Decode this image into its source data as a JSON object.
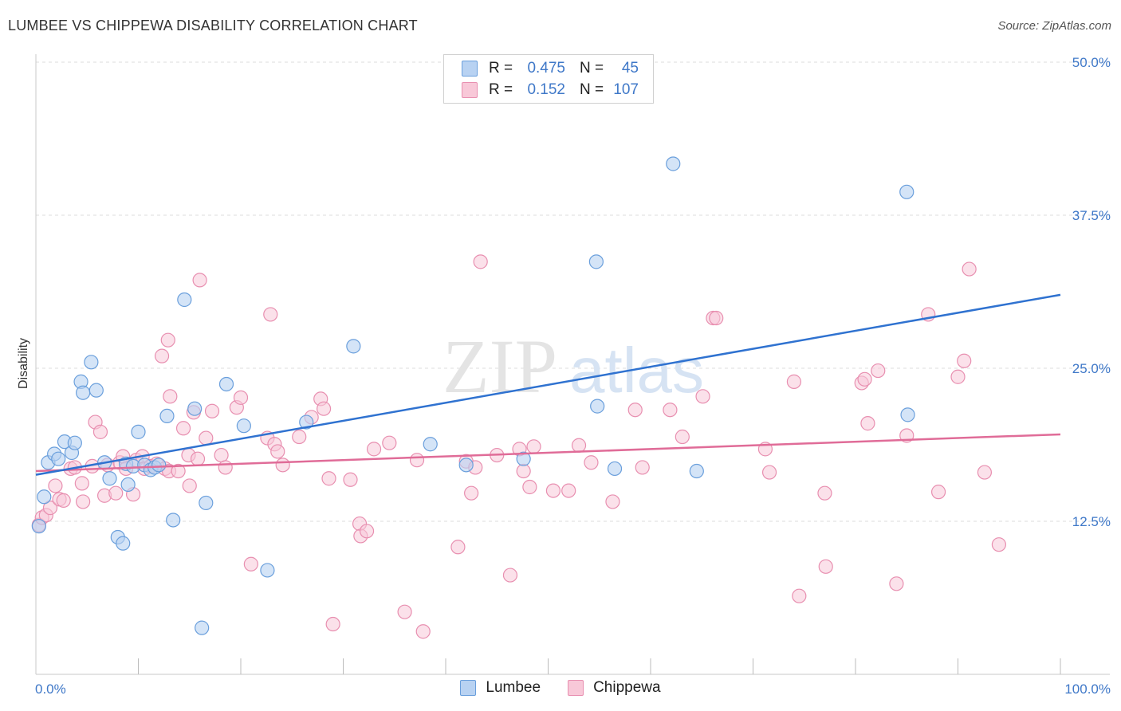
{
  "title": "LUMBEE VS CHIPPEWA DISABILITY CORRELATION CHART",
  "source": "Source: ZipAtlas.com",
  "watermark": {
    "zip": "ZIP",
    "atlas": "atlas"
  },
  "legend_top": {
    "rows": [
      {
        "r_label": "R =",
        "r_value": "0.475",
        "n_label": "N =",
        "n_value": "45"
      },
      {
        "r_label": "R =",
        "r_value": "0.152",
        "n_label": "N =",
        "n_value": "107"
      }
    ]
  },
  "legend_bottom": {
    "items": [
      "Lumbee",
      "Chippewa"
    ]
  },
  "colors": {
    "lumbee_fill": "#b8d2f2",
    "lumbee_stroke": "#6a9fdc",
    "lumbee_line": "#2f72d0",
    "chippewa_fill": "#f8c8d8",
    "chippewa_stroke": "#e88fb0",
    "chippewa_line": "#e06c98",
    "tick_text": "#3f78c8",
    "grid": "#dddddd"
  },
  "chart_data": {
    "type": "scatter",
    "title": "LUMBEE VS CHIPPEWA DISABILITY CORRELATION CHART",
    "xlabel": "",
    "ylabel": "Disability",
    "xlim": [
      0,
      100
    ],
    "ylim": [
      0,
      50
    ],
    "x_tick_labels": [
      "0.0%",
      "100.0%"
    ],
    "y_ticks": [
      12.5,
      25.0,
      37.5,
      50.0
    ],
    "y_tick_labels": [
      "12.5%",
      "25.0%",
      "37.5%",
      "50.0%"
    ],
    "grid": "horizontal dashed",
    "legend_position": "top-center",
    "series": [
      {
        "name": "Lumbee",
        "r": 0.475,
        "n": 45,
        "trend": {
          "x": [
            0,
            100
          ],
          "y": [
            16.3,
            31.0
          ]
        },
        "points": [
          [
            0.3,
            12.1
          ],
          [
            0.8,
            14.5
          ],
          [
            1.2,
            17.3
          ],
          [
            1.8,
            18.0
          ],
          [
            2.2,
            17.6
          ],
          [
            2.8,
            19.0
          ],
          [
            3.5,
            18.1
          ],
          [
            3.8,
            18.9
          ],
          [
            4.4,
            23.9
          ],
          [
            4.6,
            23.0
          ],
          [
            5.4,
            25.5
          ],
          [
            5.9,
            23.2
          ],
          [
            6.7,
            17.3
          ],
          [
            7.2,
            16.0
          ],
          [
            8.0,
            11.2
          ],
          [
            8.5,
            10.7
          ],
          [
            8.8,
            17.2
          ],
          [
            9.0,
            15.5
          ],
          [
            9.5,
            17.0
          ],
          [
            10.0,
            19.8
          ],
          [
            10.6,
            17.1
          ],
          [
            11.2,
            16.7
          ],
          [
            11.6,
            16.9
          ],
          [
            12.0,
            17.1
          ],
          [
            12.8,
            21.1
          ],
          [
            13.4,
            12.6
          ],
          [
            14.5,
            30.6
          ],
          [
            15.5,
            21.7
          ],
          [
            16.2,
            3.8
          ],
          [
            16.6,
            14.0
          ],
          [
            18.6,
            23.7
          ],
          [
            20.3,
            20.3
          ],
          [
            22.6,
            8.5
          ],
          [
            26.4,
            20.6
          ],
          [
            31.0,
            26.8
          ],
          [
            38.5,
            18.8
          ],
          [
            42.0,
            17.1
          ],
          [
            47.6,
            17.6
          ],
          [
            54.7,
            33.7
          ],
          [
            54.8,
            21.9
          ],
          [
            56.5,
            16.8
          ],
          [
            62.2,
            41.7
          ],
          [
            64.5,
            16.6
          ],
          [
            85.1,
            21.2
          ],
          [
            85.0,
            39.4
          ]
        ]
      },
      {
        "name": "Chippewa",
        "r": 0.152,
        "n": 107,
        "trend": {
          "x": [
            0,
            100
          ],
          "y": [
            16.6,
            19.6
          ]
        },
        "points": [
          [
            0.3,
            12.2
          ],
          [
            0.6,
            12.8
          ],
          [
            1.0,
            13.0
          ],
          [
            1.4,
            13.6
          ],
          [
            1.9,
            15.4
          ],
          [
            2.3,
            14.3
          ],
          [
            2.7,
            14.2
          ],
          [
            3.4,
            16.8
          ],
          [
            3.8,
            16.9
          ],
          [
            4.5,
            15.6
          ],
          [
            4.6,
            14.1
          ],
          [
            5.5,
            17.0
          ],
          [
            5.8,
            20.6
          ],
          [
            6.3,
            19.8
          ],
          [
            6.7,
            14.6
          ],
          [
            7.0,
            17.1
          ],
          [
            7.8,
            14.8
          ],
          [
            8.2,
            17.3
          ],
          [
            8.5,
            17.8
          ],
          [
            8.8,
            16.8
          ],
          [
            9.5,
            14.7
          ],
          [
            9.8,
            17.5
          ],
          [
            10.4,
            17.8
          ],
          [
            10.6,
            16.8
          ],
          [
            11.2,
            17.0
          ],
          [
            11.8,
            17.2
          ],
          [
            12.3,
            26.0
          ],
          [
            12.6,
            16.8
          ],
          [
            12.9,
            27.3
          ],
          [
            13.0,
            16.6
          ],
          [
            13.1,
            22.7
          ],
          [
            13.9,
            16.6
          ],
          [
            14.4,
            20.1
          ],
          [
            14.9,
            17.9
          ],
          [
            15.0,
            15.4
          ],
          [
            15.4,
            21.4
          ],
          [
            15.8,
            17.6
          ],
          [
            16.0,
            32.2
          ],
          [
            16.6,
            19.3
          ],
          [
            17.2,
            21.5
          ],
          [
            18.1,
            17.9
          ],
          [
            18.5,
            16.9
          ],
          [
            19.6,
            21.8
          ],
          [
            20.0,
            22.6
          ],
          [
            21.0,
            9.0
          ],
          [
            22.6,
            19.3
          ],
          [
            22.9,
            29.4
          ],
          [
            23.3,
            18.8
          ],
          [
            23.6,
            18.2
          ],
          [
            24.1,
            17.1
          ],
          [
            25.7,
            19.4
          ],
          [
            26.9,
            21.0
          ],
          [
            27.8,
            22.5
          ],
          [
            28.1,
            21.7
          ],
          [
            28.6,
            16.0
          ],
          [
            29.0,
            4.1
          ],
          [
            30.7,
            15.9
          ],
          [
            31.6,
            12.3
          ],
          [
            31.7,
            11.3
          ],
          [
            32.3,
            11.7
          ],
          [
            33.0,
            18.4
          ],
          [
            34.5,
            18.9
          ],
          [
            36.0,
            5.1
          ],
          [
            37.2,
            17.5
          ],
          [
            37.8,
            3.5
          ],
          [
            41.2,
            10.4
          ],
          [
            42.0,
            17.4
          ],
          [
            42.5,
            14.8
          ],
          [
            42.9,
            16.9
          ],
          [
            43.4,
            33.7
          ],
          [
            45.0,
            17.9
          ],
          [
            46.3,
            8.1
          ],
          [
            47.2,
            18.4
          ],
          [
            47.6,
            16.6
          ],
          [
            48.2,
            15.3
          ],
          [
            48.6,
            18.6
          ],
          [
            50.5,
            15.0
          ],
          [
            52.0,
            15.0
          ],
          [
            53.0,
            18.7
          ],
          [
            54.2,
            17.3
          ],
          [
            56.3,
            14.1
          ],
          [
            58.5,
            21.6
          ],
          [
            59.2,
            16.9
          ],
          [
            61.9,
            21.6
          ],
          [
            63.1,
            19.4
          ],
          [
            65.1,
            22.7
          ],
          [
            66.1,
            29.1
          ],
          [
            66.4,
            29.1
          ],
          [
            71.2,
            18.4
          ],
          [
            71.6,
            16.5
          ],
          [
            74.0,
            23.9
          ],
          [
            74.5,
            6.4
          ],
          [
            77.0,
            14.8
          ],
          [
            77.1,
            8.8
          ],
          [
            80.6,
            23.8
          ],
          [
            80.9,
            24.1
          ],
          [
            81.2,
            20.5
          ],
          [
            82.2,
            24.8
          ],
          [
            84.0,
            7.4
          ],
          [
            85.0,
            19.5
          ],
          [
            87.1,
            29.4
          ],
          [
            88.1,
            14.9
          ],
          [
            90.0,
            24.3
          ],
          [
            90.6,
            25.6
          ],
          [
            91.1,
            33.1
          ],
          [
            92.6,
            16.5
          ],
          [
            94.0,
            10.6
          ]
        ]
      }
    ]
  }
}
